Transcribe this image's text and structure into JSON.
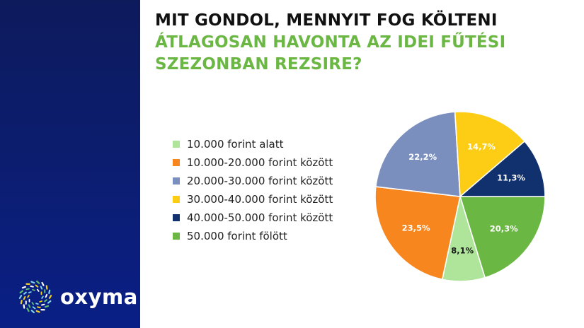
{
  "title": {
    "line1": "MIT GONDOL, MENNYIT FOG KÖLTENI",
    "line2": "ÁTLAGOSAN HAVONTA AZ IDEI FŰTÉSI",
    "line3": "SZEZONBAN REZSIRE?"
  },
  "brand": {
    "name": "oxyma",
    "icon": "oxyma-logo-icon"
  },
  "colors": {
    "sidebar": "#0c1d6e",
    "title_accent": "#6bb744",
    "title_main": "#111111"
  },
  "chart_data": {
    "type": "pie",
    "start_angle_deg": 0,
    "direction": "clockwise",
    "slices": [
      {
        "legend": "50.000 forint fölött",
        "value": 20.3,
        "label": "20,3%",
        "color": "#6ab843",
        "label_color": "#ffffff"
      },
      {
        "legend": "10.000 forint alatt",
        "value": 8.1,
        "label": "8,1%",
        "color": "#aee59a",
        "label_color": "#1a1a1a"
      },
      {
        "legend": "10.000-20.000 forint között",
        "value": 23.5,
        "label": "23,5%",
        "color": "#f7861f",
        "label_color": "#ffffff"
      },
      {
        "legend": "20.000-30.000 forint között",
        "value": 22.2,
        "label": "22,2%",
        "color": "#7a8fbd",
        "label_color": "#ffffff"
      },
      {
        "legend": "30.000-40.000 forint között",
        "value": 14.7,
        "label": "14,7%",
        "color": "#fdcd15",
        "label_color": "#ffffff"
      },
      {
        "legend": "40.000-50.000 forint között",
        "value": 11.3,
        "label": "11,3%",
        "color": "#10306e",
        "label_color": "#ffffff"
      }
    ],
    "legend_items": [
      {
        "label": "10.000 forint alatt",
        "color": "#aee59a"
      },
      {
        "label": "10.000-20.000 forint között",
        "color": "#f7861f"
      },
      {
        "label": "20.000-30.000 forint között",
        "color": "#7a8fbd"
      },
      {
        "label": "30.000-40.000 forint között",
        "color": "#fdcd15"
      },
      {
        "label": "40.000-50.000 forint között",
        "color": "#10306e"
      },
      {
        "label": "50.000 forint fölött",
        "color": "#6ab843"
      }
    ],
    "legend_position": "left"
  }
}
